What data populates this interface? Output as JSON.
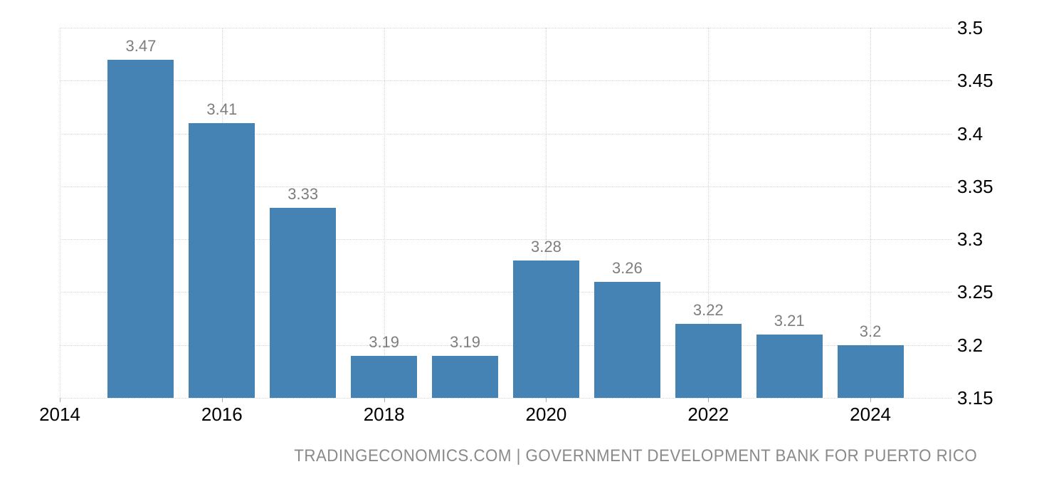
{
  "chart_data": {
    "type": "bar",
    "title": "",
    "xlabel": "",
    "ylabel": "",
    "x": [
      2015,
      2016,
      2017,
      2018,
      2019,
      2020,
      2021,
      2022,
      2023,
      2024
    ],
    "values": [
      3.47,
      3.41,
      3.33,
      3.19,
      3.19,
      3.28,
      3.26,
      3.22,
      3.21,
      3.2
    ],
    "bar_labels": [
      "3.47",
      "3.41",
      "3.33",
      "3.19",
      "3.19",
      "3.28",
      "3.26",
      "3.22",
      "3.21",
      "3.2"
    ],
    "x_tick_years": [
      2014,
      2016,
      2018,
      2020,
      2022,
      2024
    ],
    "x_tick_labels": [
      "2014",
      "2016",
      "2018",
      "2020",
      "2022",
      "2024"
    ],
    "x_range": [
      2014,
      2025
    ],
    "y_tick_values": [
      3.5,
      3.45,
      3.4,
      3.35,
      3.3,
      3.25,
      3.2,
      3.15
    ],
    "y_tick_labels": [
      "3.5",
      "3.45",
      "3.4",
      "3.35",
      "3.3",
      "3.25",
      "3.2",
      "3.15"
    ],
    "ylim": [
      3.15,
      3.5
    ],
    "grid": "dotted horizontal and vertical at ticks",
    "legend": "none",
    "y_axis_position": "right",
    "source_text": "TRADINGECONOMICS.COM | GOVERNMENT DEVELOPMENT BANK FOR PUERTO RICO",
    "colors": {
      "bar": "#4583B5",
      "value_label": "#7E7E7E",
      "axis_label": "#000000",
      "gridline": "#D6D6D6",
      "tick": "#ABABAB",
      "footer": "#8A8A8A",
      "background": "#FFFFFF"
    }
  }
}
